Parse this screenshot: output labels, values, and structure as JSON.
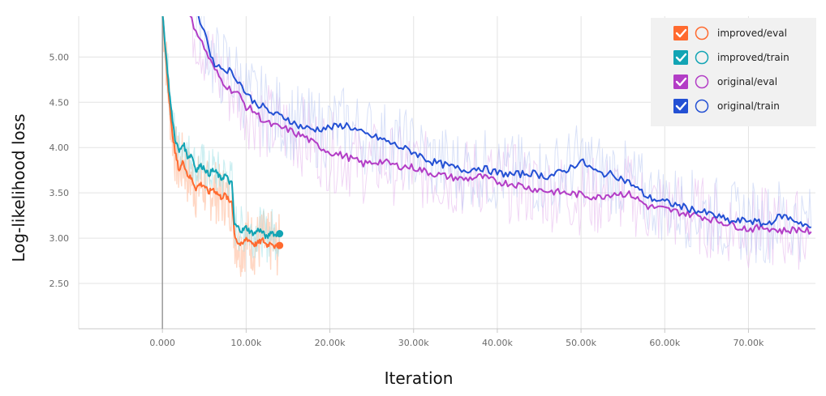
{
  "chart_data": {
    "type": "line",
    "title": "",
    "xlabel": "Iteration",
    "ylabel": "Log-likelihood loss",
    "xlim": [
      -10000,
      78000
    ],
    "ylim": [
      2.0,
      5.45
    ],
    "x_ticks": [
      {
        "value": 0,
        "label": "0.000"
      },
      {
        "value": 10000,
        "label": "10.00k"
      },
      {
        "value": 20000,
        "label": "20.00k"
      },
      {
        "value": 30000,
        "label": "30.00k"
      },
      {
        "value": 40000,
        "label": "40.00k"
      },
      {
        "value": 50000,
        "label": "50.00k"
      },
      {
        "value": 60000,
        "label": "60.00k"
      },
      {
        "value": 70000,
        "label": "70.00k"
      }
    ],
    "y_ticks": [
      {
        "value": 2.5,
        "label": "2.50"
      },
      {
        "value": 3.0,
        "label": "3.00"
      },
      {
        "value": 3.5,
        "label": "3.50"
      },
      {
        "value": 4.0,
        "label": "4.00"
      },
      {
        "value": 4.5,
        "label": "4.50"
      },
      {
        "value": 5.0,
        "label": "5.00"
      }
    ],
    "grid": true,
    "legend_position": "top-right",
    "series": [
      {
        "name": "improved/eval",
        "color": "#ff6a2f",
        "x": [
          0,
          500,
          1000,
          1500,
          2000,
          2500,
          3000,
          3500,
          4000,
          4500,
          5000,
          5500,
          6000,
          6500,
          7000,
          7500,
          8000,
          8300,
          8600,
          9000,
          9500,
          10000,
          10500,
          11000,
          11500,
          12000,
          12500,
          13000,
          13500,
          14000
        ],
        "y": [
          5.5,
          4.9,
          4.3,
          3.95,
          3.75,
          3.85,
          3.7,
          3.65,
          3.55,
          3.6,
          3.58,
          3.5,
          3.55,
          3.5,
          3.45,
          3.48,
          3.4,
          3.42,
          3.05,
          2.95,
          2.92,
          3.0,
          2.97,
          2.93,
          2.95,
          2.98,
          2.92,
          2.96,
          2.9,
          2.92
        ]
      },
      {
        "name": "improved/train",
        "color": "#12a4b4",
        "x": [
          0,
          500,
          1000,
          1500,
          2000,
          2500,
          3000,
          3500,
          4000,
          4500,
          5000,
          5500,
          6000,
          6500,
          7000,
          7500,
          8000,
          8300,
          8600,
          9000,
          9500,
          10000,
          10500,
          11000,
          11500,
          12000,
          12500,
          13000,
          13500,
          14000
        ],
        "y": [
          5.5,
          4.95,
          4.45,
          4.1,
          3.95,
          4.05,
          3.9,
          3.92,
          3.75,
          3.8,
          3.78,
          3.7,
          3.75,
          3.72,
          3.65,
          3.7,
          3.62,
          3.6,
          3.15,
          3.12,
          3.08,
          3.12,
          3.07,
          3.05,
          3.1,
          3.06,
          3.0,
          3.08,
          3.03,
          3.05
        ]
      },
      {
        "name": "original/eval",
        "color": "#b33dc6",
        "x": [
          3000,
          4000,
          5000,
          6000,
          7000,
          8000,
          9000,
          10000,
          11000,
          12000,
          13000,
          14000,
          15000,
          16000,
          17000,
          18000,
          20000,
          22000,
          24000,
          26000,
          28000,
          30000,
          32000,
          34000,
          36000,
          38000,
          40000,
          42000,
          44000,
          46000,
          48000,
          50000,
          52000,
          54000,
          56000,
          58000,
          60000,
          62000,
          64000,
          66000,
          68000,
          70000,
          72000,
          74000,
          76000,
          77500
        ],
        "y": [
          5.5,
          5.3,
          5.1,
          4.9,
          4.75,
          4.65,
          4.6,
          4.45,
          4.4,
          4.3,
          4.25,
          4.22,
          4.2,
          4.15,
          4.12,
          4.05,
          3.95,
          3.9,
          3.82,
          3.85,
          3.8,
          3.78,
          3.72,
          3.68,
          3.65,
          3.68,
          3.62,
          3.6,
          3.55,
          3.52,
          3.5,
          3.48,
          3.45,
          3.5,
          3.48,
          3.35,
          3.32,
          3.28,
          3.25,
          3.2,
          3.15,
          3.1,
          3.12,
          3.08,
          3.1,
          3.07
        ]
      },
      {
        "name": "original/train",
        "color": "#2350d4",
        "x": [
          4000,
          5000,
          6000,
          7000,
          8000,
          9000,
          10000,
          11000,
          12000,
          13000,
          14000,
          15000,
          16000,
          17000,
          18000,
          20000,
          22000,
          24000,
          26000,
          28000,
          30000,
          32000,
          34000,
          36000,
          38000,
          40000,
          42000,
          44000,
          46000,
          48000,
          50000,
          52000,
          54000,
          56000,
          58000,
          60000,
          62000,
          64000,
          66000,
          68000,
          70000,
          72000,
          74000,
          76000,
          77500
        ],
        "y": [
          5.5,
          5.3,
          4.95,
          4.88,
          4.85,
          4.75,
          4.6,
          4.5,
          4.45,
          4.38,
          4.35,
          4.32,
          4.25,
          4.22,
          4.2,
          4.22,
          4.25,
          4.15,
          4.1,
          4.02,
          3.95,
          3.85,
          3.8,
          3.75,
          3.78,
          3.72,
          3.7,
          3.72,
          3.68,
          3.74,
          3.85,
          3.72,
          3.7,
          3.6,
          3.45,
          3.4,
          3.35,
          3.3,
          3.25,
          3.18,
          3.2,
          3.15,
          3.25,
          3.18,
          3.12
        ]
      }
    ]
  }
}
